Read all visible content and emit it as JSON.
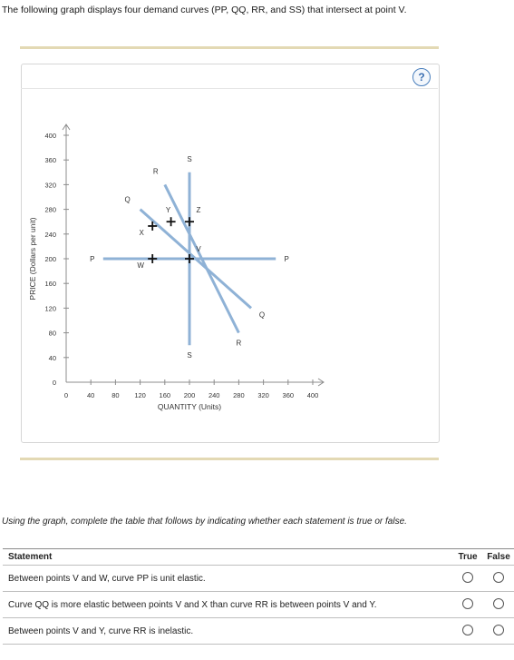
{
  "intro_text": "The following graph displays four demand curves (PP, QQ, RR, and SS) that intersect at point V.",
  "help_label": "?",
  "chart_data": {
    "type": "line",
    "xlabel": "QUANTITY (Units)",
    "ylabel": "PRICE (Dollars per unit)",
    "xlim": [
      0,
      400
    ],
    "ylim": [
      0,
      400
    ],
    "x_ticks": [
      0,
      40,
      80,
      120,
      160,
      200,
      240,
      280,
      320,
      360,
      400
    ],
    "y_ticks": [
      0,
      40,
      80,
      120,
      160,
      200,
      240,
      280,
      320,
      360,
      400
    ],
    "series": [
      {
        "name": "PP",
        "points": [
          [
            60,
            200
          ],
          [
            340,
            200
          ]
        ],
        "end_labels": [
          "P",
          "P"
        ]
      },
      {
        "name": "QQ",
        "points": [
          [
            120,
            280
          ],
          [
            300,
            120
          ]
        ],
        "end_labels": [
          "Q",
          "Q"
        ]
      },
      {
        "name": "RR",
        "points": [
          [
            160,
            320
          ],
          [
            280,
            80
          ]
        ],
        "end_labels": [
          "R",
          "R"
        ]
      },
      {
        "name": "SS",
        "points": [
          [
            200,
            340
          ],
          [
            200,
            60
          ]
        ],
        "end_labels": [
          "S",
          "S"
        ]
      }
    ],
    "points": [
      {
        "label": "V",
        "x": 200,
        "y": 200
      },
      {
        "label": "W",
        "x": 140,
        "y": 200
      },
      {
        "label": "X",
        "x": 140,
        "y": 253
      },
      {
        "label": "Y",
        "x": 170,
        "y": 260
      },
      {
        "label": "Z",
        "x": 200,
        "y": 260
      }
    ],
    "line_color": "#8fb2d6"
  },
  "instruction": "Using the graph, complete the table that follows by indicating whether each statement is true or false.",
  "table": {
    "headers": {
      "statement": "Statement",
      "true": "True",
      "false": "False"
    },
    "rows": [
      {
        "statement": "Between points V and W, curve PP is unit elastic."
      },
      {
        "statement": "Curve QQ is more elastic between points V and X than curve RR is between points V and Y."
      },
      {
        "statement": "Between points V and Y, curve RR is inelastic."
      }
    ]
  }
}
